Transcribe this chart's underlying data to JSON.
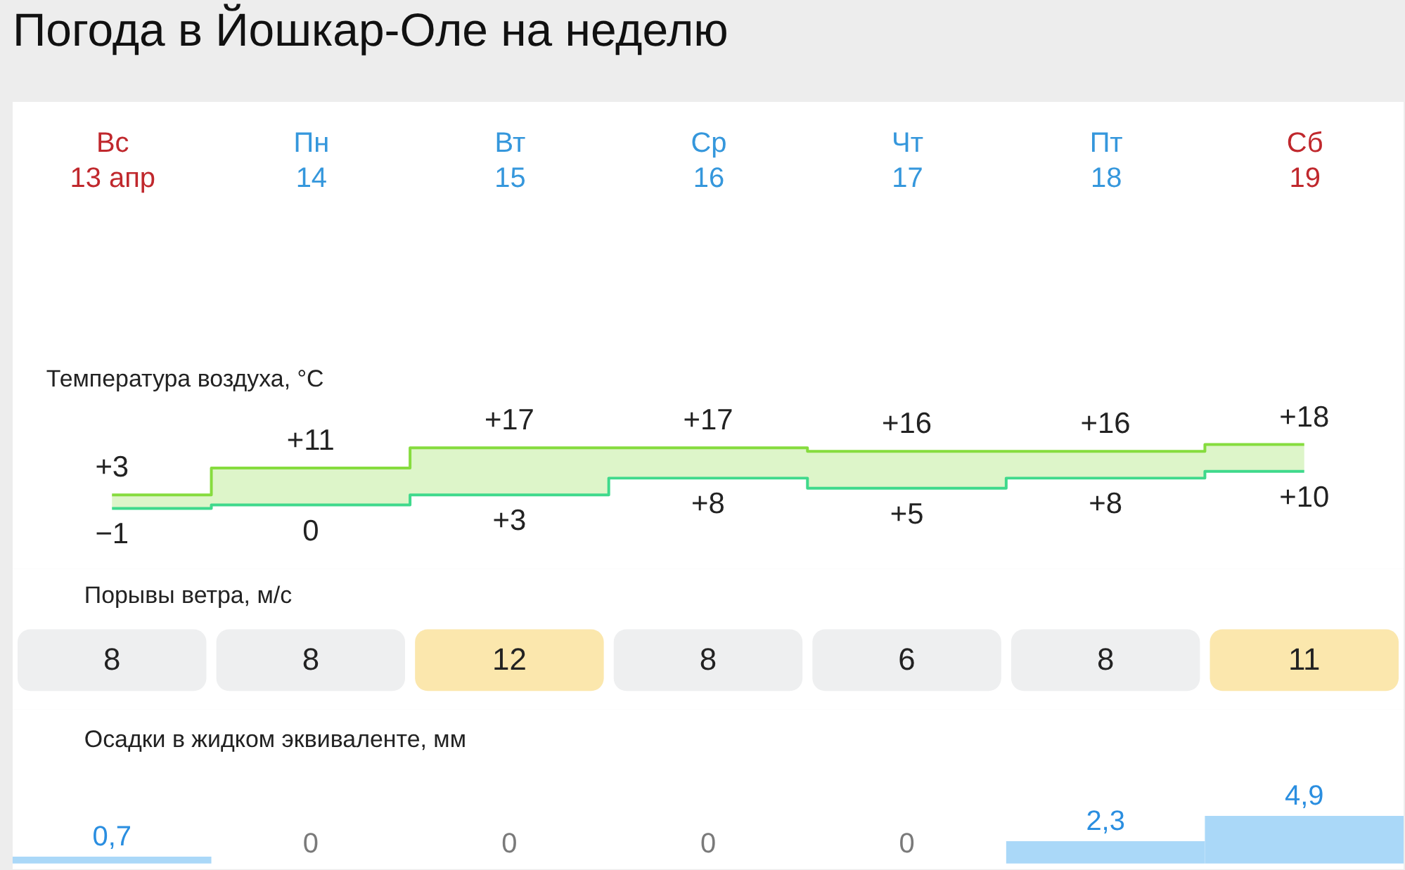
{
  "chart_data": [
    {
      "type": "other",
      "title": "Погода в Йошкар-Оле на неделю"
    },
    {
      "type": "step",
      "title": "Температура воздуха, °C",
      "categories": [
        "Вс\n13 апр",
        "Пн\n14",
        "Вт\n15",
        "Ср\n16",
        "Чт\n17",
        "Пт\n18",
        "Сб\n19"
      ],
      "tick_labels": "x",
      "series": [
        {
          "color": "#86dc3e",
          "values": [
            3,
            11,
            17,
            17,
            16,
            16,
            18
          ],
          "value_labels": [
            "+3",
            "+11",
            "+17",
            "+17",
            "+16",
            "+16",
            "+18"
          ],
          "lower": [
            -1,
            0,
            3,
            8,
            5,
            8,
            10
          ],
          "upper": [
            3,
            11,
            17,
            17,
            16,
            16,
            18
          ]
        },
        {
          "color": "#3fd98c",
          "values": [
            -1,
            0,
            3,
            8,
            5,
            8,
            10
          ],
          "value_labels": [
            "−1",
            "0",
            "+3",
            "+8",
            "+5",
            "+8",
            "+10"
          ]
        }
      ]
    },
    {
      "type": "heatmap",
      "title": "Порывы ветра, м/с",
      "categories": [
        null,
        null,
        null,
        null,
        null,
        null,
        null
      ],
      "y_categories": [
        null
      ],
      "cells": [
        [
          8,
          8,
          12,
          8,
          6,
          8,
          11
        ]
      ],
      "data_labels": true,
      "tick_labels": false
    },
    {
      "type": "bar",
      "title": "Осадки в жидком эквиваленте, мм",
      "categories": [
        null,
        null,
        null,
        null,
        null,
        null,
        null
      ],
      "values": [
        0.7,
        0,
        0,
        0,
        0,
        2.3,
        4.9
      ],
      "value_labels": [
        "0,7",
        "0",
        "0",
        "0",
        "0",
        "2,3",
        "4,9"
      ],
      "color": "#aad8f8",
      "tick_labels": false
    }
  ]
}
